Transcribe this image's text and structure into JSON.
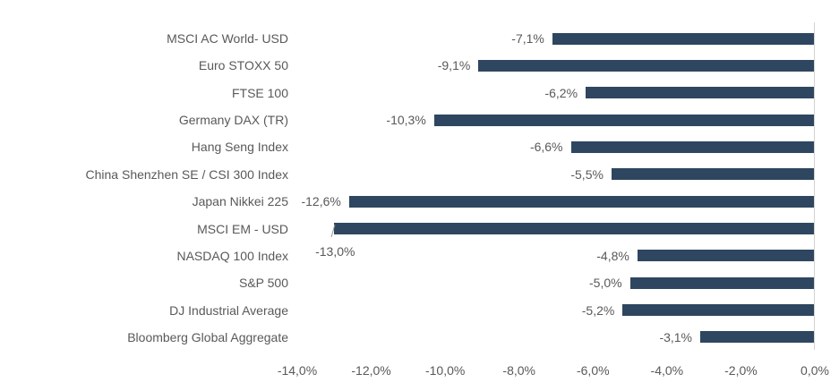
{
  "chart_data": {
    "type": "bar",
    "orientation": "horizontal",
    "title": "",
    "xlabel": "",
    "ylabel": "",
    "categories": [
      "MSCI AC World- USD",
      "Euro STOXX 50",
      "FTSE 100",
      "Germany DAX (TR)",
      "Hang Seng Index",
      "China Shenzhen SE / CSI 300 Index",
      "Japan Nikkei 225",
      "MSCI EM - USD",
      "NASDAQ 100 Index",
      "S&P 500",
      "DJ Industrial Average",
      "Bloomberg Global Aggregate"
    ],
    "values": [
      -7.1,
      -9.1,
      -6.2,
      -10.3,
      -6.6,
      -5.5,
      -12.6,
      -13.0,
      -4.8,
      -5.0,
      -5.2,
      -3.1
    ],
    "value_labels": [
      "-7,1%",
      "-9,1%",
      "-6,2%",
      "-10,3%",
      "-6,6%",
      "-5,5%",
      "-12,6%",
      "-13,0%",
      "-4,8%",
      "-5,0%",
      "-5,2%",
      "-3,1%"
    ],
    "callout_index": 7,
    "xlim": [
      -14,
      0
    ],
    "x_ticks": [
      -14,
      -12,
      -10,
      -8,
      -6,
      -4,
      -2,
      0
    ],
    "x_tick_labels": [
      "-14,0%",
      "-12,0%",
      "-10,0%",
      "-8,0%",
      "-6,0%",
      "-4,0%",
      "-2,0%",
      "0,0%"
    ],
    "grid": false,
    "legend": false,
    "bar_color": "#2e4660",
    "label_color": "#595959",
    "axis_line_color": "#d3d3d3",
    "leader_line_color": "#9a9a9a",
    "background_color": "#ffffff"
  }
}
